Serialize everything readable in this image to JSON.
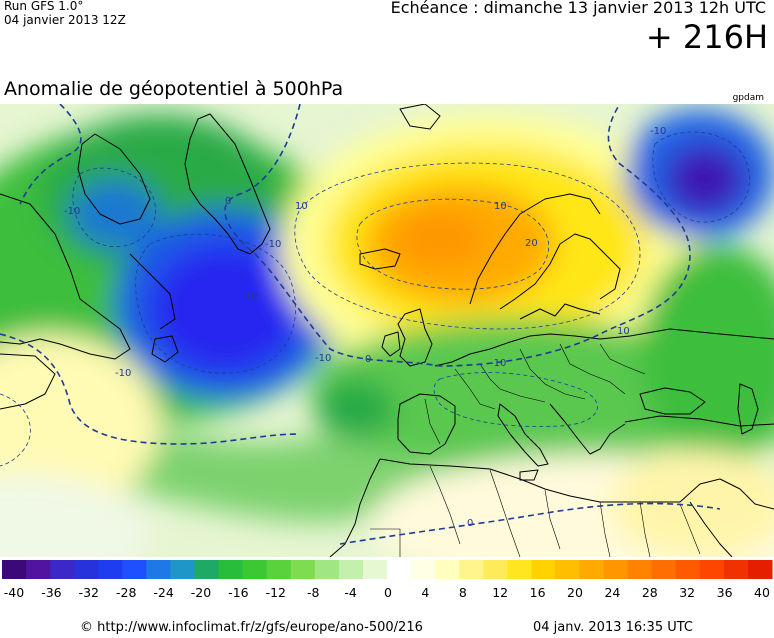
{
  "header": {
    "run": "Run GFS 1.0°",
    "init": "04 janvier 2013 12Z",
    "valid": "Echéance : dimanche 13 janvier 2013 12h UTC",
    "lead": "+ 216H"
  },
  "title": "Anomalie de géopotentiel à 500hPa",
  "unit": "gpdam",
  "map": {
    "contour_labels": [
      "-10",
      "-10",
      "-10",
      "-10",
      "10",
      "10",
      "20",
      "10",
      "-10",
      "10",
      "0",
      "0",
      "0",
      "-10"
    ],
    "colors": {
      "deep_negative": "#4b0a8c",
      "strong_negative": "#1e28e6",
      "negative": "#1ec81e",
      "weak_negative": "#b4e6a0",
      "neutral": "#ffffc8",
      "positive": "#ffe600",
      "strong_positive": "#ff9600",
      "coast": "#000000",
      "contour": "#1e3c96"
    }
  },
  "colorbar": {
    "ticks": [
      "-40",
      "-36",
      "-32",
      "-28",
      "-24",
      "-20",
      "-16",
      "-12",
      "-8",
      "-4",
      "0",
      "4",
      "8",
      "12",
      "16",
      "20",
      "24",
      "28",
      "32",
      "36",
      "40"
    ],
    "colors": [
      "#3c0a78",
      "#5014a0",
      "#3c28c8",
      "#2832dc",
      "#1e3cf0",
      "#1e50ff",
      "#1e78e6",
      "#1e96c8",
      "#1eaa64",
      "#28be3c",
      "#3cc832",
      "#5ad23c",
      "#7ddc50",
      "#a0e682",
      "#c3f0aa",
      "#e6f8d2",
      "#ffffff",
      "#ffffe6",
      "#ffffbe",
      "#fff58c",
      "#ffeb5a",
      "#ffe61e",
      "#ffd200",
      "#ffbe00",
      "#ffaa00",
      "#ff9600",
      "#ff8200",
      "#ff6e00",
      "#ff5a00",
      "#ff4600",
      "#f03200",
      "#e61e00"
    ]
  },
  "footer": {
    "url": "© http://www.infoclimat.fr/z/gfs/europe/ano-500/216",
    "date": "04 janv. 2013 16:35 UTC"
  }
}
